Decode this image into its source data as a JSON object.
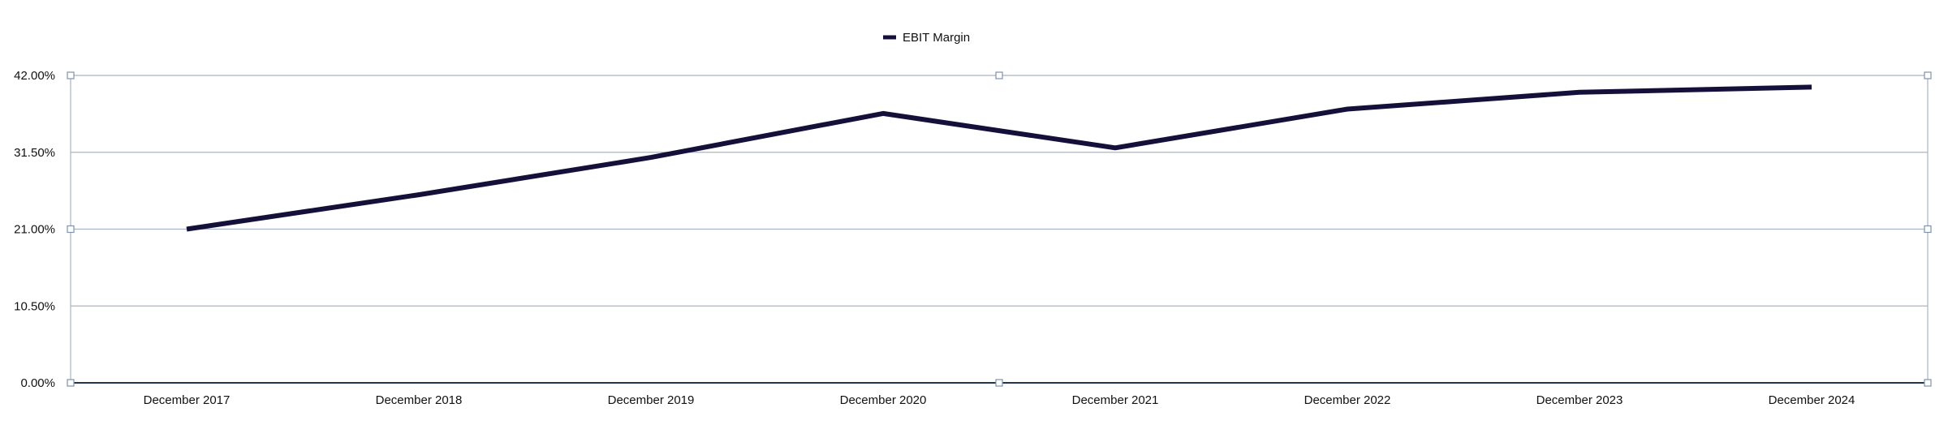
{
  "chart_data": {
    "type": "line",
    "categories": [
      "December 2017",
      "December 2018",
      "December 2019",
      "December 2020",
      "December 2021",
      "December 2022",
      "December 2023",
      "December 2024"
    ],
    "series": [
      {
        "name": "EBIT Margin",
        "values": [
          21.0,
          25.7,
          30.8,
          36.8,
          32.1,
          37.4,
          39.7,
          40.4
        ]
      }
    ],
    "y_ticks": [
      "0.00%",
      "10.50%",
      "21.00%",
      "31.50%",
      "42.00%"
    ],
    "ylim": [
      0,
      42
    ],
    "grid": true,
    "legend_position": "top-center",
    "line_color": "#14103a",
    "grid_color": "#a9b4c4",
    "axis_color": "#1f3550",
    "handle_color": "#7f93ad"
  }
}
